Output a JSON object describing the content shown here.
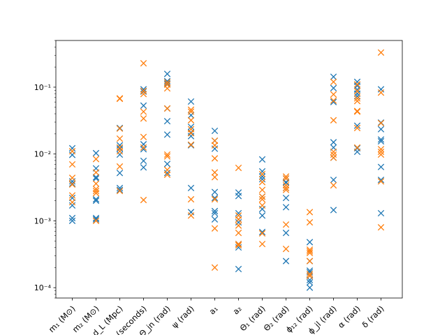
{
  "chart_data": {
    "type": "scatter",
    "marker": "x",
    "yscale": "log",
    "ylim": [
      7e-05,
      0.5
    ],
    "y_tick_labels": [
      "10⁻⁴",
      "10⁻³",
      "10⁻²",
      "10⁻¹"
    ],
    "y_tick_values": [
      0.0001,
      0.001,
      0.01,
      0.1
    ],
    "categories": [
      "m₁ (M⊙)",
      "m₂ (M⊙)",
      "d_L (Mpc)",
      "t_c (seconds)",
      "Θ_jn (rad)",
      "ψ (rad)",
      "a₁",
      "a₂",
      "Θ₁ (rad)",
      "Θ₂ (rad)",
      "ϕ₁₂ (rad)",
      "ϕ_jl (rad)",
      "α (rad)",
      "δ (rad)"
    ],
    "series": [
      {
        "color": "#1f77b4",
        "values": [
          [
            0.0122,
            0.0097,
            0.0039,
            0.0036,
            0.0022,
            0.0017,
            0.0011,
            0.001
          ],
          [
            0.0103,
            0.0061,
            0.0045,
            0.0043,
            0.0021,
            0.002,
            0.0011,
            0.00105
          ],
          [
            0.0135,
            0.012,
            0.0098,
            0.0052,
            0.0031,
            0.0029,
            0.0245
          ],
          [
            0.093,
            0.086,
            0.053,
            0.014,
            0.0118,
            0.0079,
            0.0063
          ],
          [
            0.158,
            0.123,
            0.113,
            0.048,
            0.031,
            0.0195,
            0.0071,
            0.0052
          ],
          [
            0.061,
            0.038,
            0.0255,
            0.021,
            0.0185,
            0.0135,
            0.0031,
            0.00135
          ],
          [
            0.0222,
            0.0158,
            0.012,
            0.0027,
            0.0022,
            0.0014,
            0.0013,
            0.00105
          ],
          [
            0.00265,
            0.00235,
            0.0013,
            0.00105,
            0.00095,
            0.00045,
            0.0004,
            0.00019
          ],
          [
            0.0083,
            0.0055,
            0.0046,
            0.0042,
            0.0023,
            0.0015,
            0.0012,
            0.00068
          ],
          [
            0.0043,
            0.0038,
            0.0037,
            0.0031,
            0.0022,
            0.0016,
            0.00066,
            0.00025
          ],
          [
            0.00048,
            0.00025,
            0.00018,
            0.00017,
            0.00015,
            0.00013,
            0.00012,
            0.0001
          ],
          [
            0.143,
            0.097,
            0.06,
            0.015,
            0.0125,
            0.0088,
            0.0041,
            0.00145
          ],
          [
            0.12,
            0.105,
            0.092,
            0.08,
            0.073,
            0.0265,
            0.0122,
            0.0108
          ],
          [
            0.093,
            0.0295,
            0.0235,
            0.0165,
            0.0155,
            0.0064,
            0.0041,
            0.0013
          ]
        ]
      },
      {
        "color": "#ff7f0e",
        "values": [
          [
            0.011,
            0.007,
            0.0044,
            0.0035,
            0.0024,
            0.0019
          ],
          [
            0.0084,
            0.0053,
            0.0036,
            0.003,
            0.0028,
            0.0026,
            0.001
          ],
          [
            0.068,
            0.067,
            0.024,
            0.017,
            0.0125,
            0.011,
            0.0065,
            0.0028
          ],
          [
            0.228,
            0.088,
            0.079,
            0.043,
            0.034,
            0.018,
            0.0125,
            0.00205
          ],
          [
            0.118,
            0.109,
            0.096,
            0.048,
            0.0098,
            0.0092,
            0.0058,
            0.0049
          ],
          [
            0.046,
            0.043,
            0.032,
            0.0235,
            0.0205,
            0.0138,
            0.0021,
            0.0012
          ],
          [
            0.0158,
            0.0135,
            0.0086,
            0.0053,
            0.0045,
            0.0021,
            0.00077,
            0.0002
          ],
          [
            0.0062,
            0.0012,
            0.00105,
            0.00085,
            0.00066,
            0.00045,
            0.00043
          ],
          [
            0.005,
            0.0038,
            0.0029,
            0.0023,
            0.0021,
            0.0017,
            0.00065,
            0.00045
          ],
          [
            0.0046,
            0.0043,
            0.0034,
            0.0031,
            0.0029,
            0.00088,
            0.00038
          ],
          [
            0.00135,
            0.00095,
            0.00037,
            0.00035,
            0.00033,
            0.00025,
            0.00016,
            0.00015
          ],
          [
            0.12,
            0.078,
            0.063,
            0.032,
            0.0108,
            0.0098,
            0.0088,
            0.0034
          ],
          [
            0.11,
            0.087,
            0.068,
            0.062,
            0.044,
            0.043,
            0.0245,
            0.0125
          ],
          [
            0.33,
            0.083,
            0.029,
            0.0118,
            0.0108,
            0.0098,
            0.0039,
            0.0008
          ]
        ]
      }
    ]
  }
}
